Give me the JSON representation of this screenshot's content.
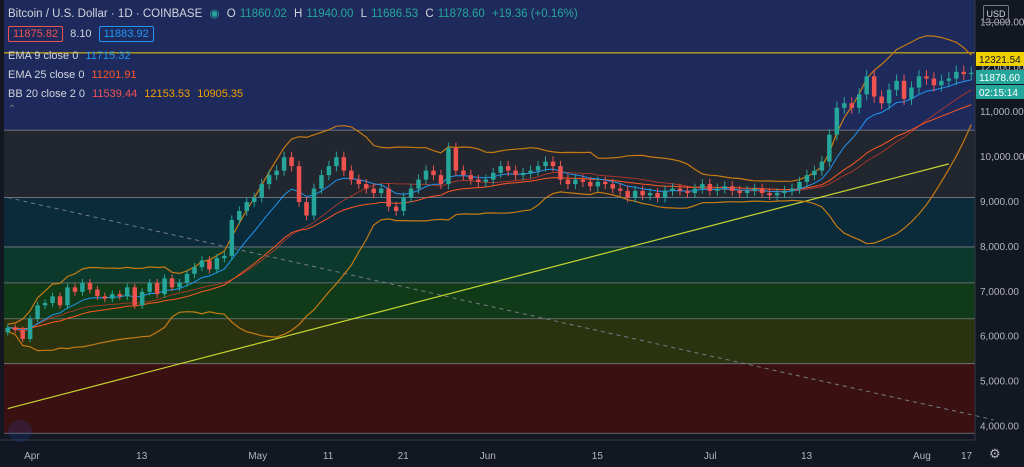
{
  "header": {
    "title": "Bitcoin / U.S. Dollar · 1D · COINBASE",
    "open_label": "O",
    "open": "11860.02",
    "high_label": "H",
    "high": "11940.00",
    "low_label": "L",
    "low": "11686.53",
    "close_label": "C",
    "close": "11878.60",
    "change": "+19.36 (+0.16%)",
    "bid": "11875.82",
    "spread": "8.10",
    "ask": "11883.92"
  },
  "indicators": {
    "ema9_label": "EMA 9 close 0",
    "ema9_value": "11715.32",
    "ema25_label": "EMA 25 close 0",
    "ema25_value": "11201.91",
    "bb_label": "BB 20 close 2 0",
    "bb_mid": "11539.44",
    "bb_upper": "12153.53",
    "bb_lower": "10905.35"
  },
  "currency_label": "USD",
  "price_tags": {
    "level": "12321.54",
    "last": "11878.60",
    "countdown": "02:15:14"
  },
  "colors": {
    "up": "#26a69a",
    "down": "#ef5350",
    "bb": "#c77b12",
    "ema9": "#2196f3",
    "ema25": "#ff5722",
    "trend": "#c6d62f",
    "yellow_line": "#f0d000",
    "grid": "#2a2e39",
    "bg": "#131722"
  },
  "chart_data": {
    "type": "candlestick",
    "title": "Bitcoin / U.S. Dollar · 1D · COINBASE",
    "xlabel": "",
    "ylabel": "",
    "ylim": [
      3700,
      13500
    ],
    "x_ticks": [
      "Apr",
      "13",
      "May",
      "11",
      "21",
      "Jun",
      "15",
      "Jul",
      "13",
      "Aug",
      "17"
    ],
    "y_ticks": [
      4000,
      5000,
      6000,
      7000,
      8000,
      9000,
      10000,
      11000,
      12000,
      13000
    ],
    "horizontal_line": 12321.54,
    "zones": [
      {
        "from": 10600,
        "to": 13500,
        "color": "#1e2a5c"
      },
      {
        "from": 9100,
        "to": 10600,
        "color": "#22262f"
      },
      {
        "from": 8000,
        "to": 9100,
        "color": "#0b2a3a"
      },
      {
        "from": 7200,
        "to": 8000,
        "color": "#0b3a2c"
      },
      {
        "from": 6400,
        "to": 7200,
        "color": "#103a18"
      },
      {
        "from": 5400,
        "to": 6400,
        "color": "#2a3210"
      },
      {
        "from": 3850,
        "to": 5400,
        "color": "#3a1010"
      }
    ],
    "fib_lines": [
      10600,
      9100,
      8000,
      7200,
      6400,
      5400,
      3850
    ],
    "trend_line": {
      "from": {
        "x": 0,
        "y": 4400
      },
      "to": {
        "x": 126,
        "y": 9850
      }
    },
    "dashed_line": {
      "from": {
        "x": 0,
        "y": 9100
      },
      "to": {
        "x": 132,
        "y": 4150
      }
    },
    "closes": [
      6200,
      6150,
      5950,
      6400,
      6700,
      6750,
      6900,
      6700,
      7100,
      7000,
      7200,
      7050,
      6900,
      6850,
      6950,
      6900,
      7100,
      6700,
      7000,
      7200,
      6950,
      7300,
      7100,
      7200,
      7400,
      7550,
      7700,
      7500,
      7750,
      7800,
      8600,
      8800,
      9000,
      9100,
      9400,
      9600,
      9700,
      10000,
      9800,
      9000,
      8700,
      9300,
      9600,
      9800,
      10000,
      9700,
      9500,
      9400,
      9300,
      9200,
      9300,
      8900,
      8800,
      9100,
      9300,
      9500,
      9700,
      9600,
      9400,
      10200,
      9700,
      9600,
      9500,
      9450,
      9500,
      9650,
      9800,
      9700,
      9600,
      9650,
      9700,
      9800,
      9900,
      9800,
      9500,
      9400,
      9500,
      9450,
      9350,
      9450,
      9400,
      9300,
      9250,
      9100,
      9250,
      9150,
      9200,
      9100,
      9250,
      9300,
      9250,
      9200,
      9300,
      9400,
      9250,
      9300,
      9350,
      9250,
      9200,
      9250,
      9300,
      9200,
      9150,
      9200,
      9250,
      9300,
      9450,
      9600,
      9700,
      9900,
      10500,
      11100,
      11200,
      11100,
      11400,
      11800,
      11350,
      11200,
      11500,
      11700,
      11300,
      11550,
      11800,
      11750,
      11600,
      11700,
      11750,
      11900,
      11850,
      11880
    ]
  }
}
